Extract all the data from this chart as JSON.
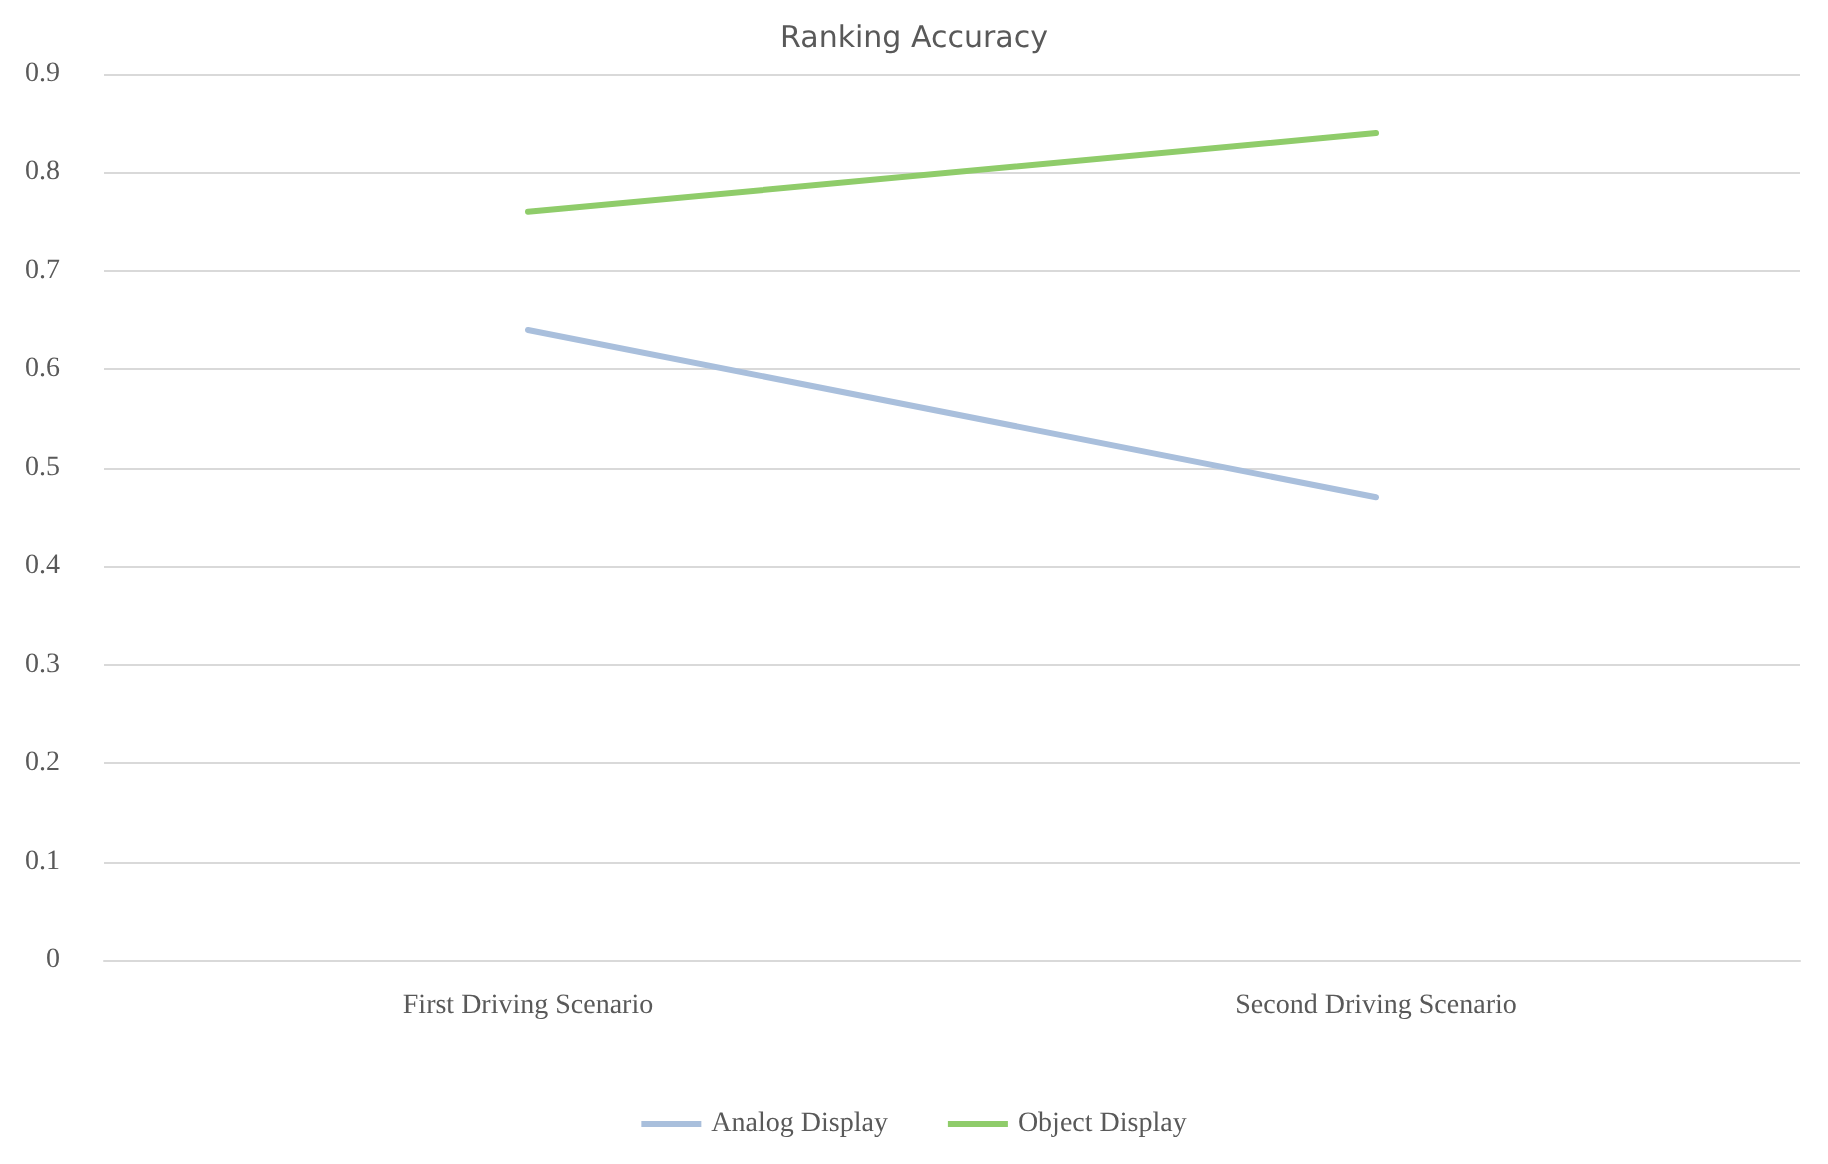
{
  "chart_data": {
    "type": "line",
    "title": "Ranking Accuracy",
    "categories": [
      "First Driving Scenario",
      "Second Driving Scenario"
    ],
    "series": [
      {
        "name": "Analog Display",
        "color": "#a9bfdc",
        "values": [
          0.64,
          0.47
        ]
      },
      {
        "name": "Object Display",
        "color": "#8fcc6a",
        "values": [
          0.76,
          0.84
        ]
      }
    ],
    "ylim": [
      0,
      0.9
    ],
    "yticks": [
      0,
      0.1,
      0.2,
      0.3,
      0.4,
      0.5,
      0.6,
      0.7,
      0.8,
      0.9
    ],
    "grid": "y",
    "legend": "bottom",
    "marker": "none"
  }
}
